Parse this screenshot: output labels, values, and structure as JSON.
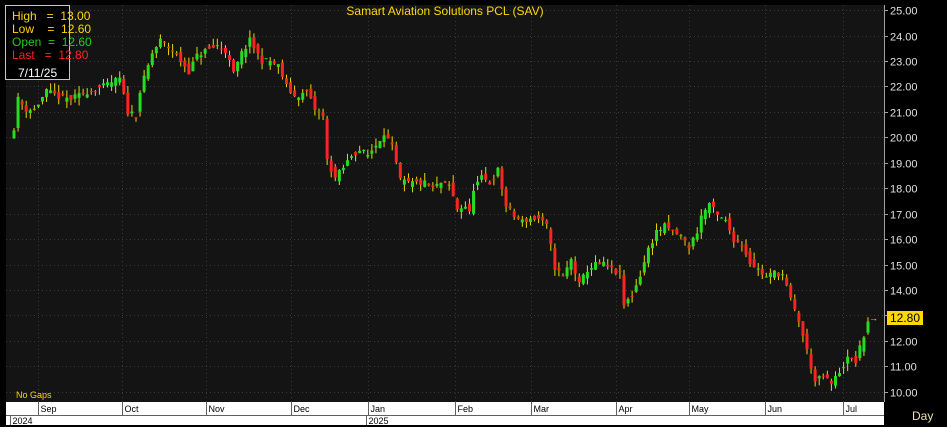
{
  "chart_data": {
    "type": "candlestick",
    "title": "Samart Aviation Solutions PCL (SAV)",
    "timeframe": "Day",
    "gap_mode": "No Gaps",
    "ylim": [
      9.6,
      25.2
    ],
    "y_ticks": [
      "10.00",
      "11.00",
      "12.00",
      "13.00",
      "14.00",
      "15.00",
      "16.00",
      "17.00",
      "18.00",
      "19.00",
      "20.00",
      "21.00",
      "22.00",
      "23.00",
      "24.00",
      "25.00"
    ],
    "x_month_labels": [
      "Sep",
      "Oct",
      "Nov",
      "Dec",
      "Jan",
      "Feb",
      "Mar",
      "Apr",
      "May",
      "Jun",
      "Jul"
    ],
    "x_year_labels": [
      "2024",
      "2025"
    ],
    "last_price_label": "12.80",
    "last_candle": {
      "date": "7/11/25",
      "high": "13.00",
      "low": "12.60",
      "open": "12.60",
      "last": "12.80"
    },
    "price_path": [
      [
        0,
        20.4
      ],
      [
        1,
        21.5
      ],
      [
        3,
        21.1
      ],
      [
        5,
        21.1
      ],
      [
        8,
        21.8
      ],
      [
        11,
        21.6
      ],
      [
        14,
        21.5
      ],
      [
        18,
        21.8
      ],
      [
        22,
        22.0
      ],
      [
        26,
        22.3
      ],
      [
        28,
        21.0
      ],
      [
        30,
        20.9
      ],
      [
        31,
        21.8
      ],
      [
        34,
        23.3
      ],
      [
        36,
        23.8
      ],
      [
        39,
        23.4
      ],
      [
        41,
        23.0
      ],
      [
        43,
        22.6
      ],
      [
        45,
        23.2
      ],
      [
        47,
        23.4
      ],
      [
        50,
        23.6
      ],
      [
        52,
        23.4
      ],
      [
        54,
        22.5
      ],
      [
        56,
        23.3
      ],
      [
        58,
        23.8
      ],
      [
        61,
        23.0
      ],
      [
        63,
        23.0
      ],
      [
        65,
        22.8
      ],
      [
        67,
        22.0
      ],
      [
        69,
        21.6
      ],
      [
        71,
        21.7
      ],
      [
        72,
        21.8
      ],
      [
        74,
        21.1
      ],
      [
        76,
        20.8
      ],
      [
        77,
        19.1
      ],
      [
        79,
        18.4
      ],
      [
        81,
        18.8
      ],
      [
        83,
        19.3
      ],
      [
        85,
        19.5
      ],
      [
        87,
        19.3
      ],
      [
        89,
        19.7
      ],
      [
        91,
        20.2
      ],
      [
        93,
        19.6
      ],
      [
        95,
        18.3
      ],
      [
        97,
        18.2
      ],
      [
        99,
        18.2
      ],
      [
        101,
        18.2
      ],
      [
        103,
        18.0
      ],
      [
        105,
        18.2
      ],
      [
        107,
        18.1
      ],
      [
        109,
        17.2
      ],
      [
        111,
        17.3
      ],
      [
        112,
        17.0
      ],
      [
        113,
        18.0
      ],
      [
        115,
        18.4
      ],
      [
        117,
        18.2
      ],
      [
        119,
        18.7
      ],
      [
        121,
        17.3
      ],
      [
        123,
        16.9
      ],
      [
        125,
        16.7
      ],
      [
        127,
        16.8
      ],
      [
        129,
        16.8
      ],
      [
        131,
        16.5
      ],
      [
        133,
        14.9
      ],
      [
        135,
        14.5
      ],
      [
        137,
        15.2
      ],
      [
        139,
        14.2
      ],
      [
        141,
        14.8
      ],
      [
        143,
        15.0
      ],
      [
        145,
        15.0
      ],
      [
        147,
        14.8
      ],
      [
        149,
        14.6
      ],
      [
        150,
        13.4
      ],
      [
        152,
        13.8
      ],
      [
        154,
        14.6
      ],
      [
        156,
        15.6
      ],
      [
        158,
        16.3
      ],
      [
        160,
        16.5
      ],
      [
        162,
        16.3
      ],
      [
        164,
        16.1
      ],
      [
        166,
        15.7
      ],
      [
        168,
        16.3
      ],
      [
        169,
        16.9
      ],
      [
        171,
        17.4
      ],
      [
        173,
        16.9
      ],
      [
        175,
        16.7
      ],
      [
        177,
        16.0
      ],
      [
        179,
        15.8
      ],
      [
        181,
        15.1
      ],
      [
        183,
        14.8
      ],
      [
        185,
        14.5
      ],
      [
        187,
        14.7
      ],
      [
        189,
        14.6
      ],
      [
        191,
        13.6
      ],
      [
        193,
        12.8
      ],
      [
        195,
        11.6
      ],
      [
        197,
        10.4
      ],
      [
        199,
        10.6
      ],
      [
        201,
        10.3
      ],
      [
        203,
        10.8
      ],
      [
        205,
        11.3
      ],
      [
        207,
        11.2
      ],
      [
        209,
        12.2
      ],
      [
        210,
        12.8
      ]
    ]
  }
}
